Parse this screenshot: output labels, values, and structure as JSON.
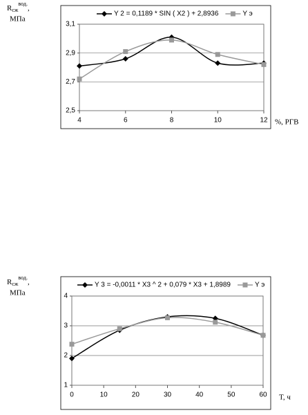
{
  "chart_data": [
    {
      "type": "line",
      "y_label": {
        "main": "R",
        "sub": "сж",
        "sup": "вод.",
        "suffix": ",",
        "unit": "МПа"
      },
      "x_label": "%, РГВ",
      "x": [
        4,
        6,
        8,
        10,
        12
      ],
      "xlim": [
        4,
        12
      ],
      "xticks": [
        4,
        6,
        8,
        10,
        12
      ],
      "ylim": [
        2.5,
        3.1
      ],
      "yticks": [
        {
          "value": 2.5,
          "label": "2,5"
        },
        {
          "value": 2.7,
          "label": "2,7"
        },
        {
          "value": 2.9,
          "label": "2,9"
        },
        {
          "value": 3.1,
          "label": "3,1"
        }
      ],
      "grid": true,
      "series": [
        {
          "name": "Y 2 = 0,1189 * SIN ( X2 ) + 2,8936",
          "color": "#000000",
          "marker": "diamond",
          "values": [
            2.81,
            2.86,
            3.01,
            2.83,
            2.83
          ]
        },
        {
          "name": "Y э",
          "color": "#999999",
          "marker": "square",
          "values": [
            2.72,
            2.91,
            2.99,
            2.89,
            2.82
          ]
        }
      ]
    },
    {
      "type": "line",
      "y_label": {
        "main": "R",
        "sub": "сж",
        "sup": "вод.",
        "suffix": ",",
        "unit": "МПа"
      },
      "x_label": "T, ч",
      "x": [
        0,
        15,
        30,
        45,
        60
      ],
      "xlim": [
        0,
        60
      ],
      "xticks": [
        0,
        10,
        20,
        30,
        40,
        50,
        60
      ],
      "ylim": [
        1,
        4
      ],
      "yticks": [
        1,
        2,
        3,
        4
      ],
      "grid": true,
      "series": [
        {
          "name": "Y 3 = -0,0011 * X3 ^ 2 + 0,079 * X3 + 1,8989",
          "color": "#000000",
          "marker": "diamond",
          "values": [
            1.9,
            2.85,
            3.3,
            3.25,
            2.68
          ]
        },
        {
          "name": "Y э",
          "color": "#999999",
          "marker": "square",
          "values": [
            2.38,
            2.9,
            3.27,
            3.12,
            2.68
          ]
        }
      ]
    }
  ]
}
